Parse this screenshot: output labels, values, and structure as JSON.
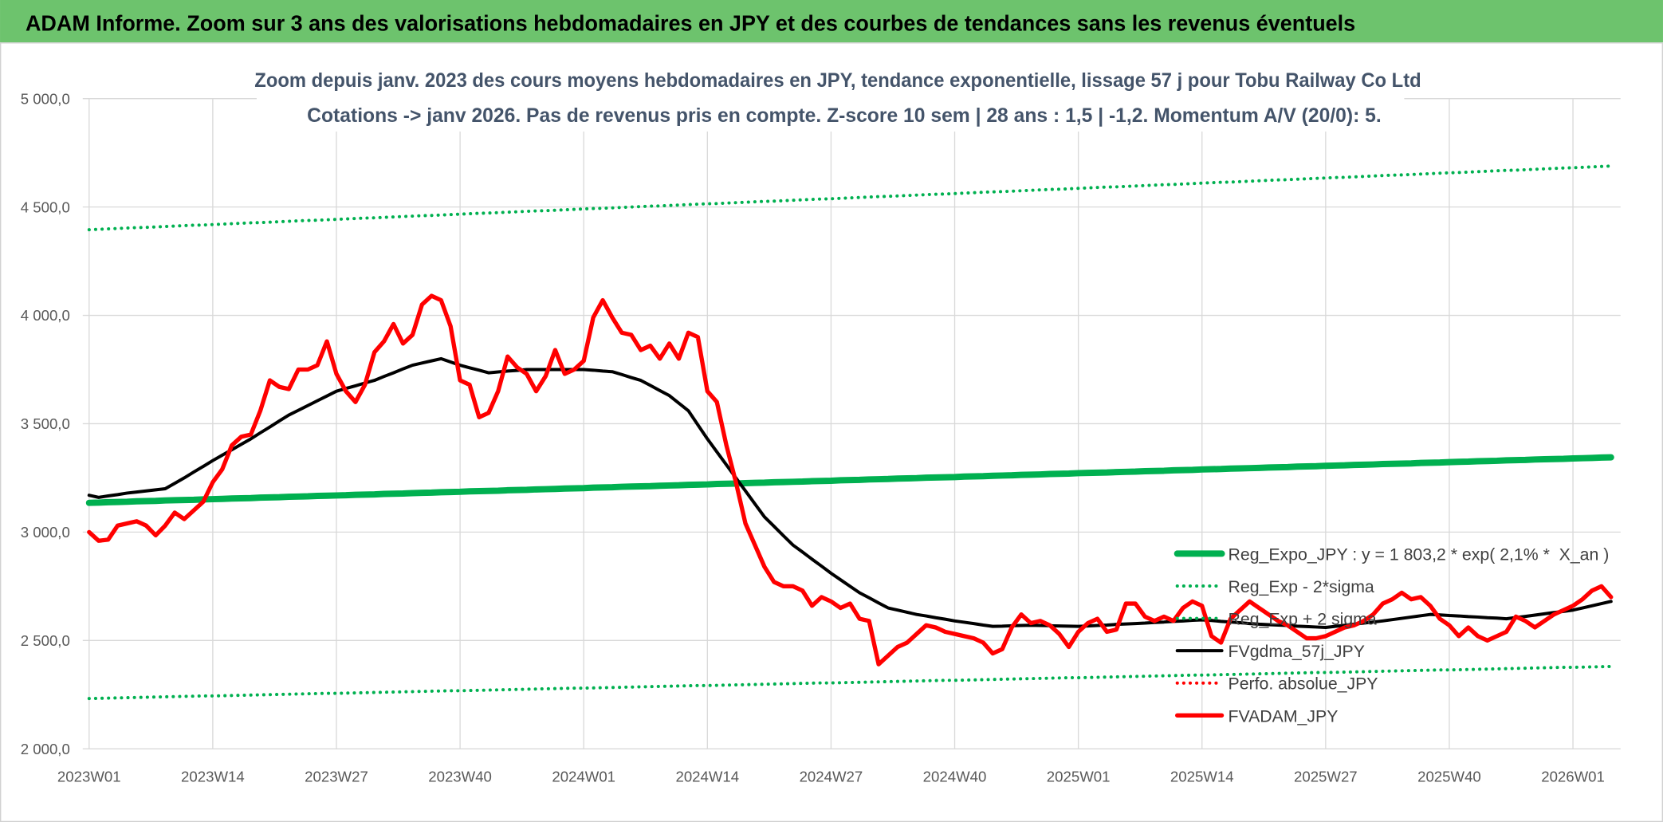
{
  "header": {
    "title": "ADAM Informe. Zoom sur 3 ans des valorisations hebdomadaires en JPY et des courbes de tendances sans les revenus éventuels"
  },
  "chart_data": {
    "type": "line",
    "title": "Zoom depuis janv. 2023 des cours moyens hebdomadaires en JPY, tendance exponentielle, lissage 57 j pour Tobu Railway Co Ltd",
    "subtitle": "Cotations -> janv 2026. Pas de revenus pris en compte. Z-score 10 sem | 28 ans : 1,5 | -1,2. Momentum A/V (20/0): 5.",
    "grid": true,
    "ylim": [
      2000,
      5000
    ],
    "yticks": [
      {
        "value": 2000,
        "label": "2 000,0"
      },
      {
        "value": 2500,
        "label": "2 500,0"
      },
      {
        "value": 3000,
        "label": "3 000,0"
      },
      {
        "value": 3500,
        "label": "3 500,0"
      },
      {
        "value": 4000,
        "label": "4 000,0"
      },
      {
        "value": 4500,
        "label": "4 500,0"
      },
      {
        "value": 5000,
        "label": "5 000,0"
      }
    ],
    "categories": [
      "2023W01",
      null,
      null,
      null,
      null,
      null,
      null,
      null,
      null,
      null,
      null,
      null,
      null,
      "2023W14",
      null,
      null,
      null,
      null,
      null,
      null,
      null,
      null,
      null,
      null,
      null,
      null,
      "2023W27",
      null,
      null,
      null,
      null,
      null,
      null,
      null,
      null,
      null,
      null,
      null,
      null,
      "2023W40",
      null,
      null,
      null,
      null,
      null,
      null,
      null,
      null,
      null,
      null,
      null,
      null,
      "2024W01",
      null,
      null,
      null,
      null,
      null,
      null,
      null,
      null,
      null,
      null,
      null,
      null,
      "2024W14",
      null,
      null,
      null,
      null,
      null,
      null,
      null,
      null,
      null,
      null,
      null,
      null,
      "2024W27",
      null,
      null,
      null,
      null,
      null,
      null,
      null,
      null,
      null,
      null,
      null,
      null,
      "2024W40",
      null,
      null,
      null,
      null,
      null,
      null,
      null,
      null,
      null,
      null,
      null,
      null,
      "2025W01",
      null,
      null,
      null,
      null,
      null,
      null,
      null,
      null,
      null,
      null,
      null,
      null,
      "2025W14",
      null,
      null,
      null,
      null,
      null,
      null,
      null,
      null,
      null,
      null,
      null,
      null,
      "2025W27",
      null,
      null,
      null,
      null,
      null,
      null,
      null,
      null,
      null,
      null,
      null,
      null,
      "2025W40",
      null,
      null,
      null,
      null,
      null,
      null,
      null,
      null,
      null,
      null,
      null,
      null,
      "2026W01",
      null,
      null,
      null,
      null
    ],
    "legend": "right",
    "series": [
      {
        "name": "Reg_Expo_JPY : y = 1 803,2 * exp( 2,1% *  X_an )",
        "color": "#00b050",
        "line": "thick",
        "values": [
          3135,
          3136,
          3138,
          3139,
          3140,
          3142,
          3143,
          3144,
          3146,
          3147,
          3148,
          3149,
          3151,
          3152,
          3153,
          3155,
          3156,
          3157,
          3159,
          3160,
          3161,
          3163,
          3164,
          3165,
          3167,
          3168,
          3169,
          3170,
          3172,
          3173,
          3174,
          3176,
          3177,
          3178,
          3180,
          3181,
          3182,
          3184,
          3185,
          3186,
          3188,
          3189,
          3190,
          3191,
          3193,
          3194,
          3195,
          3197,
          3198,
          3199,
          3201,
          3202,
          3203,
          3205,
          3206,
          3207,
          3209,
          3210,
          3211,
          3212,
          3214,
          3215,
          3216,
          3218,
          3219,
          3220,
          3222,
          3223,
          3224,
          3226,
          3227,
          3228,
          3230,
          3231,
          3232,
          3233,
          3235,
          3236,
          3237,
          3239,
          3240,
          3241,
          3243,
          3244,
          3245,
          3247,
          3248,
          3249,
          3251,
          3252,
          3253,
          3254,
          3256,
          3257,
          3258,
          3260,
          3261,
          3262,
          3264,
          3265,
          3266,
          3268,
          3269,
          3270,
          3272,
          3273,
          3274,
          3275,
          3277,
          3278,
          3279,
          3281,
          3282,
          3283,
          3285,
          3286,
          3287,
          3289,
          3290,
          3291,
          3293,
          3294,
          3295,
          3296,
          3298,
          3299,
          3300,
          3302,
          3303,
          3304,
          3306,
          3307,
          3308,
          3310,
          3311,
          3312,
          3314,
          3315,
          3316,
          3317,
          3319,
          3320,
          3321,
          3323,
          3324,
          3325,
          3327,
          3328,
          3329,
          3331,
          3332,
          3333,
          3335,
          3336,
          3337,
          3338,
          3340,
          3341,
          3342,
          3344,
          3345
        ]
      },
      {
        "name": "Reg_Exp - 2*sigma",
        "color": "#00b050",
        "line": "dotted",
        "values": [
          2232,
          2233,
          2234,
          2235,
          2236,
          2237,
          2238,
          2239,
          2240,
          2241,
          2242,
          2243,
          2244,
          2244,
          2245,
          2246,
          2247,
          2248,
          2249,
          2250,
          2251,
          2252,
          2253,
          2254,
          2255,
          2256,
          2256,
          2257,
          2258,
          2259,
          2260,
          2261,
          2262,
          2263,
          2264,
          2265,
          2266,
          2267,
          2268,
          2268,
          2269,
          2270,
          2271,
          2272,
          2273,
          2274,
          2275,
          2276,
          2277,
          2278,
          2279,
          2280,
          2280,
          2281,
          2282,
          2283,
          2284,
          2285,
          2286,
          2287,
          2288,
          2289,
          2290,
          2291,
          2292,
          2292,
          2293,
          2294,
          2295,
          2296,
          2297,
          2298,
          2299,
          2300,
          2301,
          2302,
          2303,
          2304,
          2304,
          2305,
          2306,
          2307,
          2308,
          2309,
          2310,
          2311,
          2312,
          2313,
          2314,
          2315,
          2316,
          2316,
          2317,
          2318,
          2319,
          2320,
          2321,
          2322,
          2323,
          2324,
          2325,
          2326,
          2327,
          2328,
          2328,
          2329,
          2330,
          2331,
          2332,
          2333,
          2334,
          2335,
          2336,
          2337,
          2338,
          2339,
          2340,
          2340,
          2341,
          2342,
          2343,
          2344,
          2345,
          2346,
          2347,
          2348,
          2349,
          2350,
          2351,
          2352,
          2352,
          2353,
          2354,
          2355,
          2356,
          2357,
          2358,
          2359,
          2360,
          2361,
          2362,
          2363,
          2364,
          2364,
          2365,
          2366,
          2367,
          2368,
          2369,
          2370,
          2371,
          2372,
          2373,
          2374,
          2375,
          2376,
          2376,
          2377,
          2378,
          2379,
          2380
        ]
      },
      {
        "name": "Reg_Exp + 2 sigma",
        "color": "#00b050",
        "line": "dotted",
        "values": [
          4395,
          4397,
          4399,
          4401,
          4403,
          4405,
          4406,
          4408,
          4410,
          4412,
          4414,
          4416,
          4417,
          4419,
          4421,
          4423,
          4425,
          4427,
          4428,
          4430,
          4432,
          4434,
          4436,
          4438,
          4439,
          4441,
          4443,
          4445,
          4447,
          4449,
          4450,
          4452,
          4454,
          4456,
          4458,
          4460,
          4461,
          4463,
          4465,
          4467,
          4469,
          4471,
          4472,
          4474,
          4476,
          4478,
          4480,
          4482,
          4483,
          4485,
          4487,
          4489,
          4491,
          4493,
          4494,
          4496,
          4498,
          4500,
          4502,
          4504,
          4505,
          4507,
          4509,
          4511,
          4513,
          4515,
          4516,
          4518,
          4520,
          4522,
          4524,
          4526,
          4527,
          4529,
          4531,
          4533,
          4535,
          4537,
          4538,
          4540,
          4542,
          4544,
          4546,
          4548,
          4549,
          4551,
          4553,
          4555,
          4557,
          4559,
          4560,
          4562,
          4564,
          4566,
          4568,
          4570,
          4571,
          4573,
          4575,
          4577,
          4579,
          4581,
          4582,
          4584,
          4586,
          4588,
          4590,
          4592,
          4593,
          4595,
          4597,
          4599,
          4601,
          4603,
          4604,
          4606,
          4608,
          4610,
          4612,
          4614,
          4615,
          4617,
          4619,
          4621,
          4623,
          4625,
          4626,
          4628,
          4630,
          4632,
          4634,
          4636,
          4637,
          4639,
          4641,
          4643,
          4645,
          4647,
          4648,
          4650,
          4652,
          4654,
          4656,
          4658,
          4659,
          4661,
          4663,
          4665,
          4667,
          4669,
          4670,
          4672,
          4674,
          4676,
          4678,
          4680,
          4681,
          4683,
          4685,
          4687,
          4689
        ]
      },
      {
        "name": "FVgdma_57j_JPY",
        "color": "#000000",
        "line": "medium",
        "values": [
          3170,
          3160,
          3167,
          3173,
          3180,
          3185,
          3190,
          3195,
          3200,
          3225,
          3250,
          3277,
          3303,
          3330,
          3355,
          3380,
          3405,
          3430,
          3458,
          3485,
          3513,
          3540,
          3562,
          3584,
          3606,
          3628,
          3650,
          3663,
          3675,
          3688,
          3700,
          3718,
          3735,
          3753,
          3770,
          3780,
          3790,
          3800,
          3785,
          3770,
          3758,
          3747,
          3735,
          3739,
          3743,
          3746,
          3750,
          3750,
          3750,
          3750,
          3750,
          3750,
          3750,
          3747,
          3743,
          3740,
          3727,
          3713,
          3700,
          3677,
          3653,
          3630,
          3595,
          3560,
          3495,
          3430,
          3370,
          3310,
          3250,
          3190,
          3130,
          3070,
          3027,
          2983,
          2940,
          2908,
          2875,
          2843,
          2810,
          2780,
          2750,
          2720,
          2697,
          2673,
          2650,
          2640,
          2630,
          2620,
          2613,
          2605,
          2598,
          2590,
          2584,
          2578,
          2571,
          2565,
          2566,
          2568,
          2569,
          2570,
          2569,
          2568,
          2567,
          2566,
          2565,
          2567,
          2569,
          2571,
          2574,
          2576,
          2578,
          2580,
          2583,
          2585,
          2588,
          2590,
          2593,
          2595,
          2592,
          2588,
          2585,
          2582,
          2578,
          2575,
          2573,
          2571,
          2569,
          2566,
          2564,
          2562,
          2560,
          2565,
          2570,
          2575,
          2580,
          2585,
          2590,
          2596,
          2602,
          2608,
          2614,
          2620,
          2618,
          2615,
          2613,
          2610,
          2608,
          2605,
          2603,
          2600,
          2606,
          2611,
          2617,
          2623,
          2629,
          2634,
          2640,
          2650,
          2660,
          2670,
          2680
        ]
      },
      {
        "name": "Perfo. absolue_JPY",
        "color": "#ff0000",
        "line": "dotted",
        "values": [
          null,
          null,
          null,
          null,
          null,
          null,
          null,
          null,
          null,
          null,
          null,
          null,
          null,
          null,
          null,
          null,
          null,
          null,
          null,
          null,
          null,
          null,
          null,
          null,
          null,
          null,
          null,
          null,
          null,
          null,
          null,
          null,
          null,
          null,
          null,
          null,
          null,
          null,
          null,
          null,
          null,
          null,
          null,
          null,
          null,
          null,
          null,
          null,
          null,
          null,
          null,
          null,
          null,
          null,
          null,
          null,
          null,
          null,
          null,
          null,
          null,
          null,
          null,
          null,
          null,
          null,
          null,
          null,
          null,
          null,
          null,
          null,
          null,
          null,
          null,
          null,
          null,
          null,
          null,
          null,
          null,
          null,
          null,
          null,
          null,
          null,
          null,
          null,
          null,
          null,
          null,
          null,
          null,
          null,
          null,
          null,
          null,
          null,
          null,
          null,
          null,
          null,
          null,
          null,
          null,
          null,
          null,
          null,
          null,
          null,
          null,
          null,
          null,
          null,
          null,
          null,
          null,
          null,
          null,
          null,
          null,
          null,
          null,
          null,
          null,
          null,
          null,
          null,
          null,
          null,
          null,
          null,
          null,
          null,
          null,
          null,
          null,
          null,
          null,
          null,
          null,
          null,
          null,
          null,
          null,
          null,
          null,
          null,
          null,
          null,
          null,
          null,
          null,
          null,
          null,
          null,
          null,
          null,
          null,
          null,
          null
        ]
      },
      {
        "name": "FVADAM_JPY",
        "color": "#ff0000",
        "line": "bold",
        "values": [
          3000,
          2960,
          2965,
          3030,
          3040,
          3050,
          3030,
          2985,
          3030,
          3090,
          3060,
          3100,
          3140,
          3230,
          3290,
          3400,
          3440,
          3450,
          3560,
          3700,
          3670,
          3660,
          3750,
          3750,
          3770,
          3880,
          3730,
          3650,
          3600,
          3680,
          3830,
          3880,
          3960,
          3870,
          3910,
          4050,
          4090,
          4070,
          3950,
          3700,
          3680,
          3530,
          3550,
          3650,
          3810,
          3760,
          3730,
          3650,
          3720,
          3840,
          3730,
          3750,
          3790,
          3990,
          4070,
          3990,
          3920,
          3910,
          3840,
          3860,
          3800,
          3870,
          3800,
          3920,
          3900,
          3650,
          3600,
          3400,
          3230,
          3040,
          2940,
          2840,
          2770,
          2750,
          2750,
          2730,
          2660,
          2700,
          2680,
          2650,
          2670,
          2600,
          2590,
          2390,
          2430,
          2470,
          2490,
          2530,
          2570,
          2560,
          2540,
          2530,
          2520,
          2510,
          2490,
          2440,
          2460,
          2560,
          2620,
          2580,
          2590,
          2570,
          2530,
          2470,
          2540,
          2580,
          2600,
          2540,
          2550,
          2670,
          2670,
          2610,
          2590,
          2610,
          2590,
          2650,
          2680,
          2660,
          2520,
          2490,
          2600,
          2640,
          2680,
          2650,
          2620,
          2590,
          2570,
          2540,
          2510,
          2510,
          2520,
          2540,
          2560,
          2570,
          2590,
          2620,
          2670,
          2690,
          2720,
          2690,
          2700,
          2660,
          2600,
          2570,
          2520,
          2560,
          2520,
          2500,
          2520,
          2540,
          2610,
          2590,
          2560,
          2590,
          2620,
          2640,
          2660,
          2690,
          2730,
          2750,
          2700
        ]
      }
    ]
  }
}
